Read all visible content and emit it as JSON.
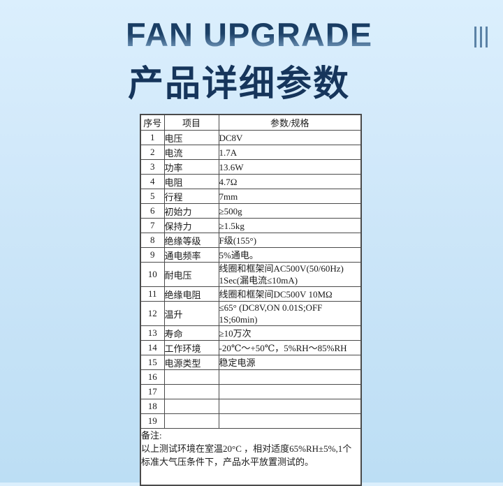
{
  "page": {
    "title_en": "FAN UPGRADE",
    "title_cn": "产品详细参数"
  },
  "icons": {
    "menu_bars": "triple-vertical-bars-icon"
  },
  "colors": {
    "background_top": "#dbeffd",
    "background_bottom": "#bcdef4",
    "title_navy": "#16355b",
    "title_gradient_top": "#14365d",
    "title_gradient_bottom": "#a9c7de",
    "table_border": "#4a4a4a",
    "cell_background": "#ffffff",
    "bars_icon": "#5b82a6",
    "table_text": "#1a1a1a"
  },
  "table": {
    "headers": [
      "序号",
      "项目",
      "参数/规格"
    ],
    "rows": [
      {
        "no": "1",
        "item": "电压",
        "value": "DC8V"
      },
      {
        "no": "2",
        "item": "电流",
        "value": "1.7A"
      },
      {
        "no": "3",
        "item": "功率",
        "value": "13.6W"
      },
      {
        "no": "4",
        "item": "电阻",
        "value": "4.7Ω"
      },
      {
        "no": "5",
        "item": "行程",
        "value": "7mm"
      },
      {
        "no": "6",
        "item": "初始力",
        "value": "≥500g"
      },
      {
        "no": "7",
        "item": "保持力",
        "value": "≥1.5kg"
      },
      {
        "no": "8",
        "item": "绝缘等级",
        "value": "F级(155°)"
      },
      {
        "no": "9",
        "item": "通电频率",
        "value": "5%通电。"
      },
      {
        "no": "10",
        "item": "耐电压",
        "value": "线圈和框架间AC500V(50/60Hz)\n1Sec(漏电流≤10mA)"
      },
      {
        "no": "11",
        "item": "绝缘电阻",
        "value": "线圈和框架间DC500V 10MΩ"
      },
      {
        "no": "12",
        "item": "温升",
        "value": "≤65° (DC8V,ON 0.01S;OFF 1S;60min)"
      },
      {
        "no": "13",
        "item": "寿命",
        "value": "≥10万次"
      },
      {
        "no": "14",
        "item": "工作环境",
        "value": "-20℃～+50℃，5%RH～85%RH"
      },
      {
        "no": "15",
        "item": "电源类型",
        "value": "稳定电源"
      },
      {
        "no": "16",
        "item": "",
        "value": ""
      },
      {
        "no": "17",
        "item": "",
        "value": ""
      },
      {
        "no": "18",
        "item": "",
        "value": ""
      },
      {
        "no": "19",
        "item": "",
        "value": ""
      }
    ],
    "note_label": "备注:",
    "note_text": "以上测试环境在室温20°C ，相对适度65%RH±5%,1个标准大气压条件下，产品水平放置测试的。"
  }
}
